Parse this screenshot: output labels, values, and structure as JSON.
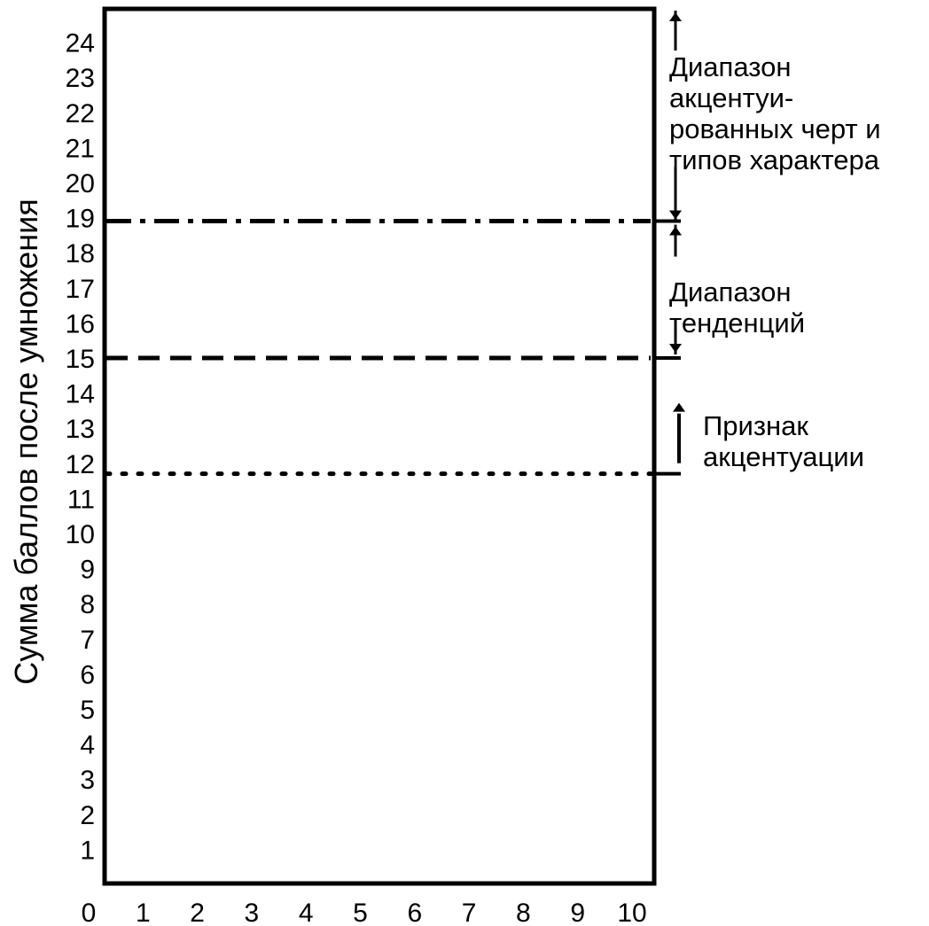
{
  "chart_data": {
    "type": "line",
    "title": "",
    "xlabel": "",
    "ylabel": "Сумма баллов после умножения",
    "x_ticks": [
      "0",
      "1",
      "2",
      "3",
      "4",
      "5",
      "6",
      "7",
      "8",
      "9",
      "10"
    ],
    "y_ticks": [
      "1",
      "2",
      "3",
      "4",
      "5",
      "6",
      "7",
      "8",
      "9",
      "10",
      "11",
      "12",
      "13",
      "14",
      "15",
      "16",
      "17",
      "18",
      "19",
      "20",
      "21",
      "22",
      "23",
      "24"
    ],
    "xlim": [
      0,
      10
    ],
    "ylim": [
      0,
      25
    ],
    "grid": false,
    "reference_lines": [
      {
        "style": "dotted",
        "y": 11.7
      },
      {
        "style": "dashed",
        "y": 15
      },
      {
        "style": "dashdot",
        "y": 18.9
      }
    ],
    "annotations": [
      {
        "name": "accent-range",
        "lines": [
          "Диапазон",
          "акцентуи-",
          "рованных черт и",
          "типов характера"
        ],
        "from": 18.9,
        "to": 25
      },
      {
        "name": "tendency-range",
        "lines": [
          "Диапазон",
          "тенденций"
        ],
        "from": 15,
        "to": 18.9
      },
      {
        "name": "accent-sign",
        "lines": [
          "Признак",
          "акцентуации"
        ],
        "from": 11.7,
        "to": 15
      }
    ]
  },
  "colors": {
    "ink": "#000000",
    "background": "#ffffff"
  }
}
